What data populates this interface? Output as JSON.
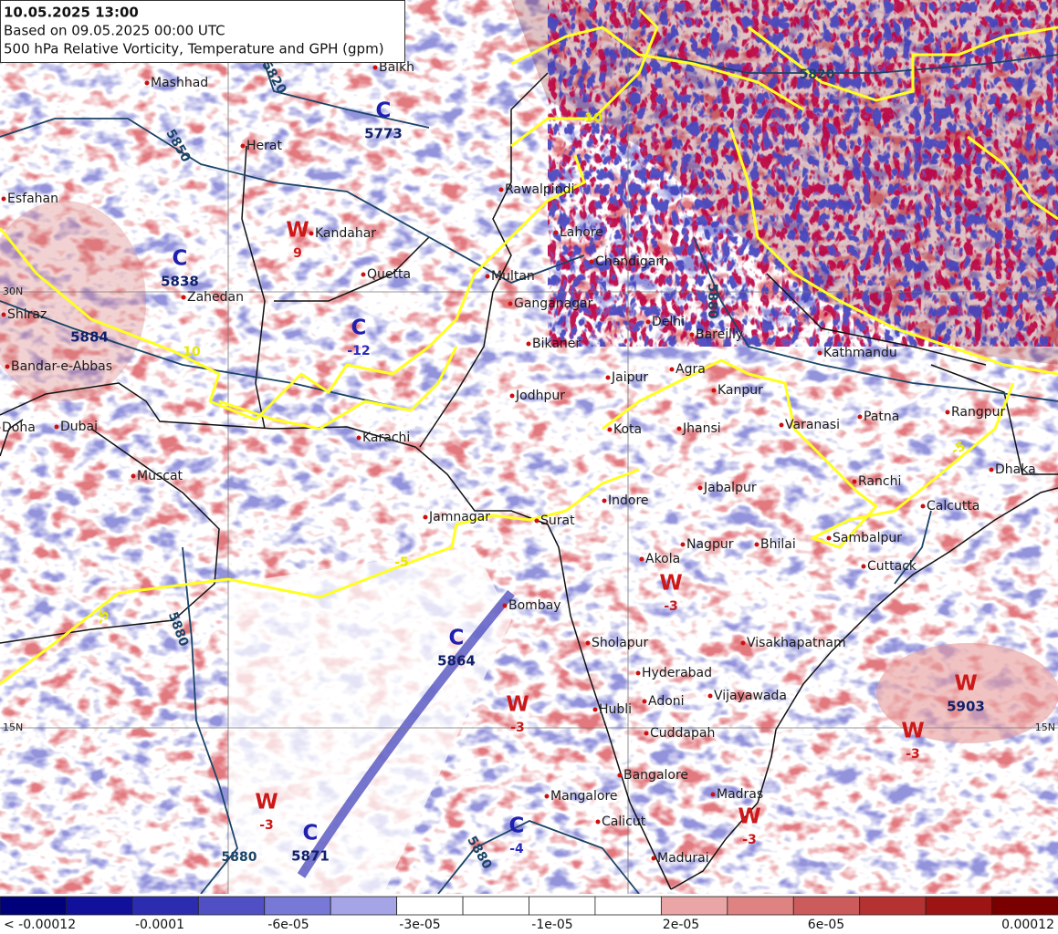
{
  "header": {
    "lines": [
      "10.05.2025 13:00",
      "Based on 09.05.2025 00:00 UTC",
      "500 hPa Relative Vorticity, Temperature and GPH (gpm)"
    ]
  },
  "cities": [
    "Mashhad",
    "Balkh",
    "Herat",
    "Kandahar",
    "Quetta",
    "Zahedan",
    "Shiraz",
    "Esfahan",
    "Bandar-e-Abbas",
    "Doha",
    "Dubai",
    "Muscat",
    "Karachi",
    "Multan",
    "Lahore",
    "Rawalpindi",
    "Chandigarh",
    "Ganganagar",
    "Bikaner",
    "Delhi",
    "Bareilly",
    "Jodhpur",
    "Jaipur",
    "Agra",
    "Kanpur",
    "Kota",
    "Jhansi",
    "Varanasi",
    "Patna",
    "Kathmandu",
    "Rangpur",
    "Dhaka",
    "Ranchi",
    "Calcutta",
    "Jabalpur",
    "Indore",
    "Jamnagar",
    "Surat",
    "Nagpur",
    "Bhilai",
    "Akola",
    "Sambalpur",
    "Cuttack",
    "Bombay",
    "Sholapur",
    "Visakhapatnam",
    "Hyderabad",
    "Vijayawada",
    "Adoni",
    "Hubli",
    "Cuddapah",
    "Bangalore",
    "Madras",
    "Mangalore",
    "Calicut",
    "Madurai"
  ],
  "centers": [
    {
      "kind": "C",
      "value": 5773
    },
    {
      "kind": "W",
      "value": 9
    },
    {
      "kind": "C",
      "value": 5838
    },
    {
      "kind": "C",
      "value": -12
    },
    {
      "kind": "C",
      "value": 5864
    },
    {
      "kind": "W",
      "value": -3
    },
    {
      "kind": "W",
      "value": -3
    },
    {
      "kind": "W",
      "value": 5903
    },
    {
      "kind": "W",
      "value": -3
    },
    {
      "kind": "W",
      "value": -3
    },
    {
      "kind": "C",
      "value": 5871
    },
    {
      "kind": "C",
      "value": -4
    },
    {
      "kind": "W",
      "value": -3
    }
  ],
  "gph_label": 5884,
  "contour_labels": [
    5820,
    5850,
    5880,
    5880,
    5880,
    5880,
    5820,
    10,
    10,
    -5,
    -5,
    -5
  ],
  "latitudes": [
    "30N",
    "15N",
    "15N"
  ],
  "colorbar": {
    "labels": [
      "< -0.00012",
      "-0.0001",
      "-6e-05",
      "-3e-05",
      "-1e-05",
      "2e-05",
      "6e-05",
      "0.00012"
    ]
  }
}
